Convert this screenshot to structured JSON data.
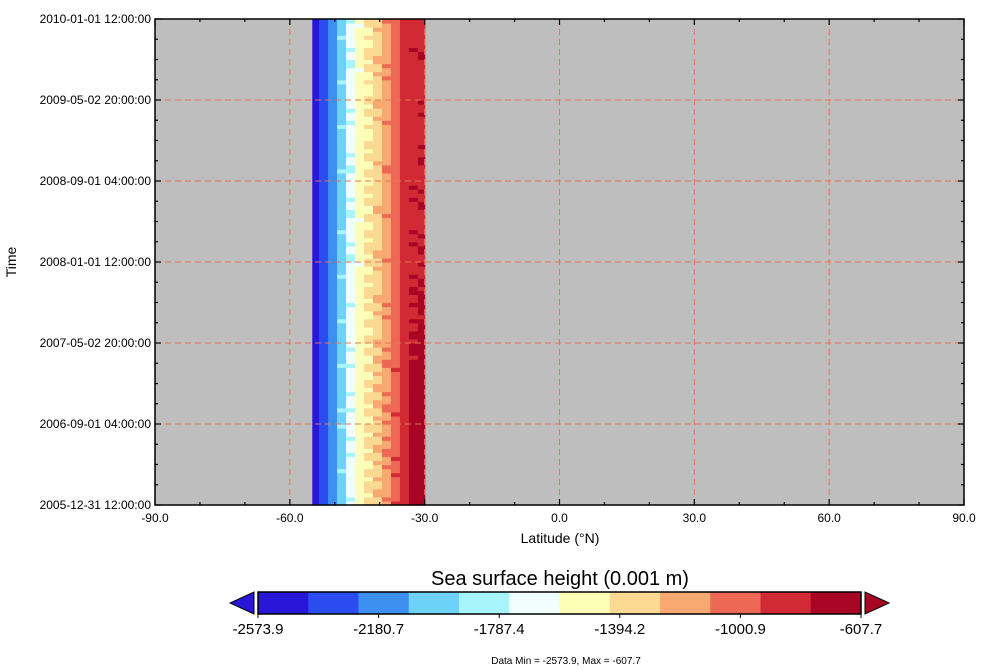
{
  "chart_data": {
    "type": "heatmap",
    "title": "",
    "xlabel": "Latitude (°N)",
    "ylabel": "Time",
    "xlim": [
      -90,
      90
    ],
    "xticks": [
      -90,
      -60,
      -30,
      0,
      30,
      60,
      90
    ],
    "xtick_labels": [
      "-90.0",
      "-60.0",
      "-30.0",
      "0.0",
      "30.0",
      "60.0",
      "90.0"
    ],
    "ylim": [
      "2005-12-31 12:00:00",
      "2010-01-01 12:00:00"
    ],
    "ytick_labels": [
      "2005-12-31 12:00:00",
      "2006-09-01 04:00:00",
      "2007-05-02 20:00:00",
      "2008-01-01 12:00:00",
      "2008-09-01 04:00:00",
      "2009-05-02 20:00:00",
      "2010-01-01 12:00:00"
    ],
    "grid": true,
    "grid_color": "#e8735a",
    "background_color": "#bebebe",
    "data_extent_lat": [
      -55,
      -30
    ],
    "latitude_bins": [
      -54.5,
      -52.5,
      -50.5,
      -48.5,
      -46.5,
      -44.5,
      -42.5,
      -40.5,
      -38.5,
      -36.5,
      -34.5,
      -32.5,
      -30.5
    ],
    "time_samples": [
      "2005-12-31",
      "2006-09-01",
      "2007-05-02",
      "2008-01-01",
      "2008-09-01",
      "2009-05-02",
      "2010-01-01"
    ],
    "values": [
      [
        -2500,
        -2330,
        -2150,
        -1950,
        -1720,
        -1530,
        -1420,
        -1270,
        -1120,
        -960,
        -820,
        -700,
        -640
      ],
      [
        -2500,
        -2330,
        -2150,
        -1950,
        -1720,
        -1530,
        -1420,
        -1270,
        -1120,
        -960,
        -820,
        -700,
        -650
      ],
      [
        -2500,
        -2330,
        -2150,
        -1960,
        -1730,
        -1540,
        -1420,
        -1280,
        -1130,
        -990,
        -860,
        -760,
        -720
      ],
      [
        -2500,
        -2330,
        -2150,
        -1960,
        -1730,
        -1540,
        -1430,
        -1290,
        -1140,
        -1010,
        -880,
        -800,
        -780
      ],
      [
        -2500,
        -2330,
        -2150,
        -1960,
        -1730,
        -1540,
        -1430,
        -1290,
        -1140,
        -1010,
        -880,
        -810,
        -790
      ],
      [
        -2500,
        -2330,
        -2150,
        -1960,
        -1730,
        -1540,
        -1430,
        -1290,
        -1140,
        -1010,
        -890,
        -820,
        -800
      ],
      [
        -2500,
        -2330,
        -2150,
        -1960,
        -1730,
        -1540,
        -1430,
        -1290,
        -1140,
        -1010,
        -890,
        -820,
        -810
      ]
    ],
    "colorbar": {
      "title": "Sea surface height (0.001 m)",
      "min": -2573.9,
      "max": -607.7,
      "labels": [
        "-2573.9",
        "-2180.7",
        "-1787.4",
        "-1394.2",
        "-1000.9",
        "-607.7"
      ],
      "colors": [
        "#2a16d8",
        "#2b4df0",
        "#3d8ff0",
        "#6ed1f8",
        "#a8f4fb",
        "#f0fffe",
        "#fdffb9",
        "#fcd992",
        "#f8a971",
        "#ee6856",
        "#d22a34",
        "#a90525"
      ],
      "extend": "both"
    },
    "footnote": "Data Min = -2573.9, Max = -607.7"
  }
}
